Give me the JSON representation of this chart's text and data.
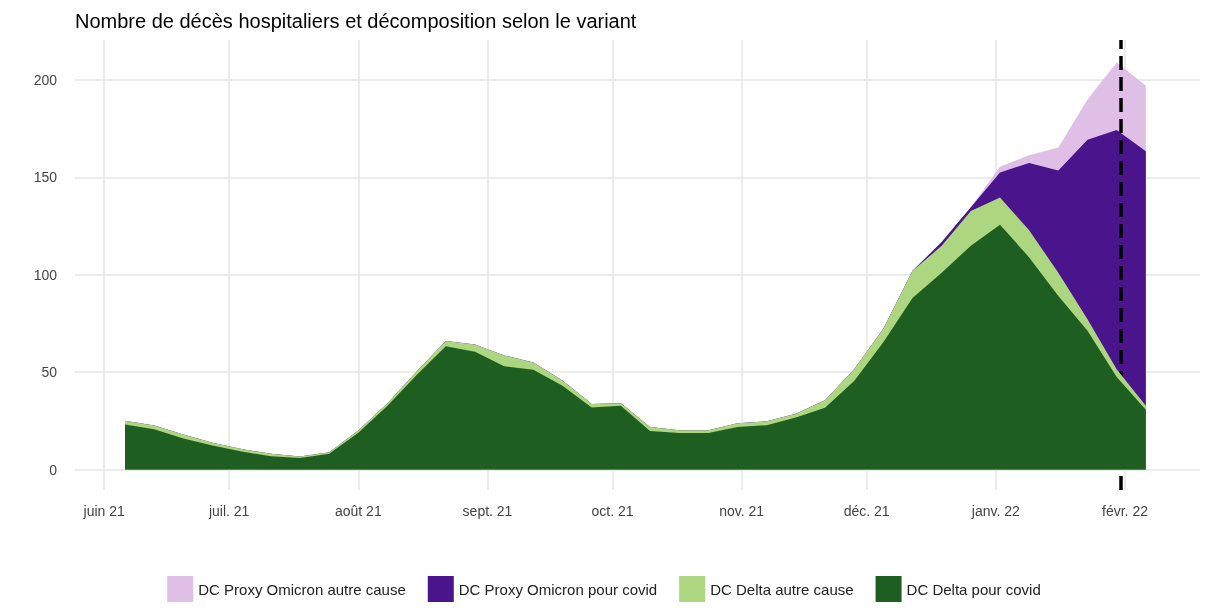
{
  "chart_data": {
    "type": "area",
    "title": "Nombre de décès hospitaliers et décomposition selon le variant",
    "stacked": true,
    "x": [
      "2021-06-06",
      "2021-06-13",
      "2021-06-20",
      "2021-06-27",
      "2021-07-04",
      "2021-07-11",
      "2021-07-18",
      "2021-07-25",
      "2021-08-01",
      "2021-08-08",
      "2021-08-15",
      "2021-08-22",
      "2021-08-29",
      "2021-09-05",
      "2021-09-12",
      "2021-09-19",
      "2021-09-26",
      "2021-10-03",
      "2021-10-10",
      "2021-10-17",
      "2021-10-24",
      "2021-10-31",
      "2021-11-07",
      "2021-11-14",
      "2021-11-21",
      "2021-11-28",
      "2021-12-05",
      "2021-12-12",
      "2021-12-19",
      "2021-12-26",
      "2022-01-02",
      "2022-01-09",
      "2022-01-16",
      "2022-01-23",
      "2022-01-30",
      "2022-02-06"
    ],
    "series": [
      {
        "name": "DC Delta pour covid",
        "color": "#1e5e20",
        "values": [
          23.1,
          20.7,
          16,
          12.4,
          9.2,
          6.8,
          5.9,
          8.1,
          18.9,
          32.7,
          48.5,
          63.3,
          60.5,
          53,
          51.2,
          43,
          31.8,
          32.7,
          19.8,
          18.8,
          18.8,
          21.8,
          22.8,
          26.7,
          31.7,
          45.5,
          65.3,
          88,
          101,
          114.9,
          125.7,
          108.9,
          89.1,
          71.3,
          47.5,
          30.7
        ]
      },
      {
        "name": "DC Delta autre cause",
        "color": "#acd680",
        "values": [
          1.9,
          1.9,
          2,
          1.3,
          1.3,
          1.3,
          0.8,
          0.8,
          1.1,
          1.3,
          1.8,
          2.7,
          3.7,
          5.6,
          3.8,
          2.7,
          1.9,
          1.3,
          2,
          1.4,
          1.4,
          2,
          2,
          2,
          3.9,
          6,
          7,
          14,
          13.9,
          17.8,
          13.9,
          13.9,
          11.9,
          5.9,
          4,
          2
        ]
      },
      {
        "name": "DC Proxy Omicron pour covid",
        "color": "#4a148c",
        "values": [
          0,
          0,
          0,
          0,
          0,
          0,
          0,
          0,
          0,
          0,
          0,
          0,
          0,
          0,
          0,
          0,
          0,
          0,
          0,
          0,
          0,
          0,
          0,
          0,
          0,
          0,
          0,
          0,
          1.9,
          2,
          12.9,
          34.6,
          52.5,
          92.1,
          122.8,
          130.7
        ]
      },
      {
        "name": "DC Proxy Omicron autre cause",
        "color": "#e0bfe7",
        "values": [
          0,
          0,
          0,
          0,
          0,
          0,
          0,
          0,
          0,
          0,
          0,
          0,
          0,
          0,
          0,
          0,
          0,
          0,
          0,
          0,
          0,
          0,
          0,
          0,
          0,
          0,
          0,
          0,
          0,
          0,
          2.9,
          4,
          11.8,
          20.7,
          34.6,
          33.6
        ]
      }
    ],
    "xlim": [
      "2021-05-25",
      "2022-02-19"
    ],
    "xticks": [
      {
        "value": "2021-06-01",
        "label": "juin 21"
      },
      {
        "value": "2021-07-01",
        "label": "juil. 21"
      },
      {
        "value": "2021-08-01",
        "label": "août 21"
      },
      {
        "value": "2021-09-01",
        "label": "sept. 21"
      },
      {
        "value": "2021-10-01",
        "label": "oct. 21"
      },
      {
        "value": "2021-11-01",
        "label": "nov. 21"
      },
      {
        "value": "2021-12-01",
        "label": "déc. 21"
      },
      {
        "value": "2022-01-01",
        "label": "janv. 22"
      },
      {
        "value": "2022-02-01",
        "label": "févr. 22"
      }
    ],
    "ylim": [
      -10.5,
      220.5
    ],
    "yticks": [
      0,
      50,
      100,
      150,
      200
    ],
    "grid": true,
    "legend": "bottom",
    "ref_lines": [
      {
        "axis": "x",
        "value": "2022-01-31",
        "label": null,
        "color": "#000000",
        "line_style": "dashed"
      }
    ]
  }
}
